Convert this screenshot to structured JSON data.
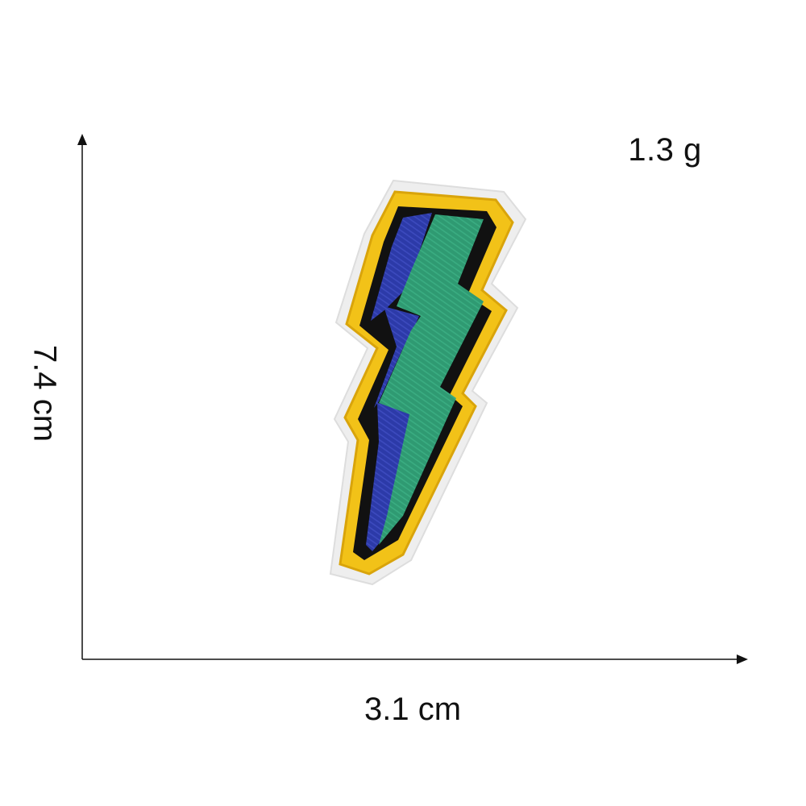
{
  "measurements": {
    "weight": "1.3 g",
    "width": "3.1 cm",
    "height": "7.4 cm"
  },
  "patch": {
    "subject": "lightning-bolt-embroidered-patch",
    "colors": {
      "border": "#f2c218",
      "outline": "#111111",
      "front": "#2f9a72",
      "side": "#2c3aa8",
      "backing": "#eeeeee"
    }
  }
}
